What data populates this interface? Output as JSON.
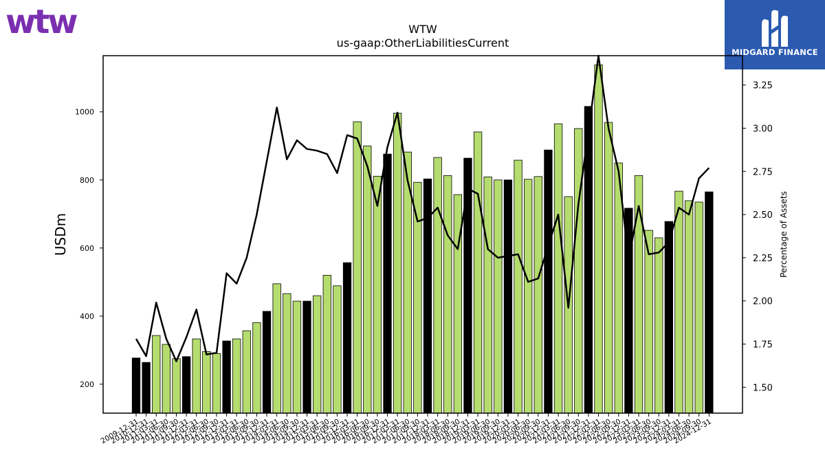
{
  "logos": {
    "company": "wtw",
    "company_color": "#7a2fb0",
    "watermark": "MIDGARD FINANCE",
    "watermark_bg": "#2b5ab0"
  },
  "chart_data": {
    "type": "bar",
    "title": "WTW",
    "subtitle": "us-gaap:OtherLiabilitiesCurrent",
    "ylabel": "USDm",
    "y2label": "Percentage of Assets",
    "ylim": [
      115,
      1165
    ],
    "y2lim": [
      1.35,
      3.42
    ],
    "yticks": [
      200,
      400,
      600,
      800,
      1000
    ],
    "y2ticks": [
      1.5,
      1.75,
      2.0,
      2.25,
      2.5,
      2.75,
      3.0,
      3.25
    ],
    "colors": {
      "annual": "#000000",
      "quarterly": "#b5dc6e",
      "line": "#000000"
    },
    "categories": [
      "2009-12-31",
      "2010-12-31",
      "2011-03-31",
      "2011-06-30",
      "2011-09-30",
      "2011-12-31",
      "2012-03-31",
      "2012-06-30",
      "2012-09-30",
      "2012-12-31",
      "2013-03-31",
      "2013-06-30",
      "2013-09-30",
      "2013-12-31",
      "2014-03-31",
      "2014-06-30",
      "2014-09-30",
      "2014-12-31",
      "2015-03-31",
      "2015-06-30",
      "2015-09-30",
      "2015-12-31",
      "2016-03-31",
      "2016-06-30",
      "2016-09-30",
      "2016-12-31",
      "2017-03-31",
      "2017-06-30",
      "2017-09-30",
      "2017-12-31",
      "2018-03-31",
      "2018-06-30",
      "2018-09-30",
      "2018-12-31",
      "2019-03-31",
      "2019-06-30",
      "2019-09-30",
      "2019-12-31",
      "2020-03-31",
      "2020-06-30",
      "2020-09-30",
      "2020-12-31",
      "2021-03-31",
      "2021-06-30",
      "2021-09-30",
      "2021-12-31",
      "2022-03-31",
      "2022-06-30",
      "2022-09-30",
      "2022-12-31",
      "2023-03-31",
      "2023-06-30",
      "2023-09-30",
      "2023-12-31",
      "2024-03-31",
      "2024-06-30",
      "2024-09-30",
      "2024-12-31"
    ],
    "series": [
      {
        "values": [
          277,
          264,
          343,
          317,
          275,
          281,
          333,
          296,
          290,
          327,
          333,
          357,
          381,
          414,
          495,
          466,
          444,
          444,
          460,
          520,
          489,
          557,
          971,
          900,
          811,
          876,
          996,
          882,
          793,
          803,
          866,
          813,
          757,
          864,
          941,
          809,
          800,
          800,
          858,
          802,
          810,
          888,
          965,
          751,
          951,
          1016,
          1138,
          969,
          850,
          717,
          813,
          652,
          630,
          678,
          767,
          739,
          735,
          765
        ],
        "annual": [
          true,
          true,
          false,
          false,
          false,
          true,
          false,
          false,
          false,
          true,
          false,
          false,
          false,
          true,
          false,
          false,
          false,
          true,
          false,
          false,
          false,
          true,
          false,
          false,
          false,
          true,
          false,
          false,
          false,
          true,
          false,
          false,
          false,
          true,
          false,
          false,
          false,
          true,
          false,
          false,
          false,
          true,
          false,
          false,
          false,
          true,
          false,
          false,
          false,
          true,
          false,
          false,
          false,
          true,
          false,
          false,
          false,
          true
        ]
      },
      {
        "values": [
          1.78,
          1.68,
          1.99,
          1.78,
          1.65,
          1.79,
          1.95,
          1.69,
          1.7,
          2.16,
          2.1,
          2.25,
          2.5,
          2.81,
          3.12,
          2.82,
          2.93,
          2.88,
          2.87,
          2.85,
          2.74,
          2.96,
          2.94,
          2.78,
          2.55,
          2.89,
          3.09,
          2.7,
          2.46,
          2.48,
          2.54,
          2.38,
          2.3,
          2.65,
          2.62,
          2.3,
          2.25,
          2.26,
          2.27,
          2.11,
          2.13,
          2.32,
          2.5,
          1.96,
          2.56,
          2.98,
          3.42,
          3.0,
          2.75,
          2.24,
          2.55,
          2.27,
          2.28,
          2.34,
          2.54,
          2.5,
          2.71,
          2.77
        ]
      }
    ]
  }
}
